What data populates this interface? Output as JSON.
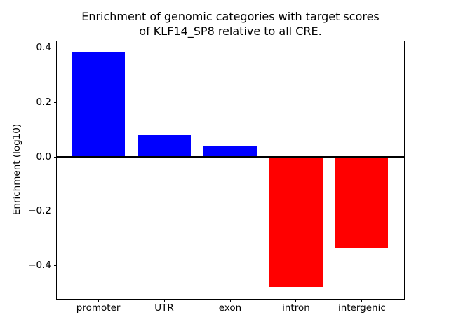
{
  "figure": {
    "title_line1": "Enrichment of genomic categories with target scores",
    "title_line2": "of KLF14_SP8 relative to all CRE."
  },
  "chart_data": {
    "type": "bar",
    "title": "Enrichment of genomic categories with target scores\nof KLF14_SP8 relative to all CRE.",
    "xlabel": "",
    "ylabel": "Enrichment (log10)",
    "categories": [
      "promoter",
      "UTR",
      "exon",
      "intron",
      "intergenic"
    ],
    "values": [
      0.385,
      0.08,
      0.038,
      -0.479,
      -0.335
    ],
    "bar_colors": [
      "#0000ff",
      "#0000ff",
      "#0000ff",
      "#ff0000",
      "#ff0000"
    ],
    "positive_color": "#0000ff",
    "negative_color": "#ff0000",
    "bar_width": 0.8,
    "ylim": [
      -0.522,
      0.428
    ],
    "xlim": [
      -0.64,
      4.64
    ],
    "yticks": [
      0.4,
      0.2,
      0.0,
      -0.2,
      -0.4
    ],
    "ytick_labels": [
      "0.4",
      "0.2",
      "0.0",
      "−0.2",
      "−0.4"
    ],
    "grid": false,
    "legend": null,
    "zero_line": {
      "color": "#000000",
      "width": 2
    },
    "background_color": "#ffffff"
  }
}
